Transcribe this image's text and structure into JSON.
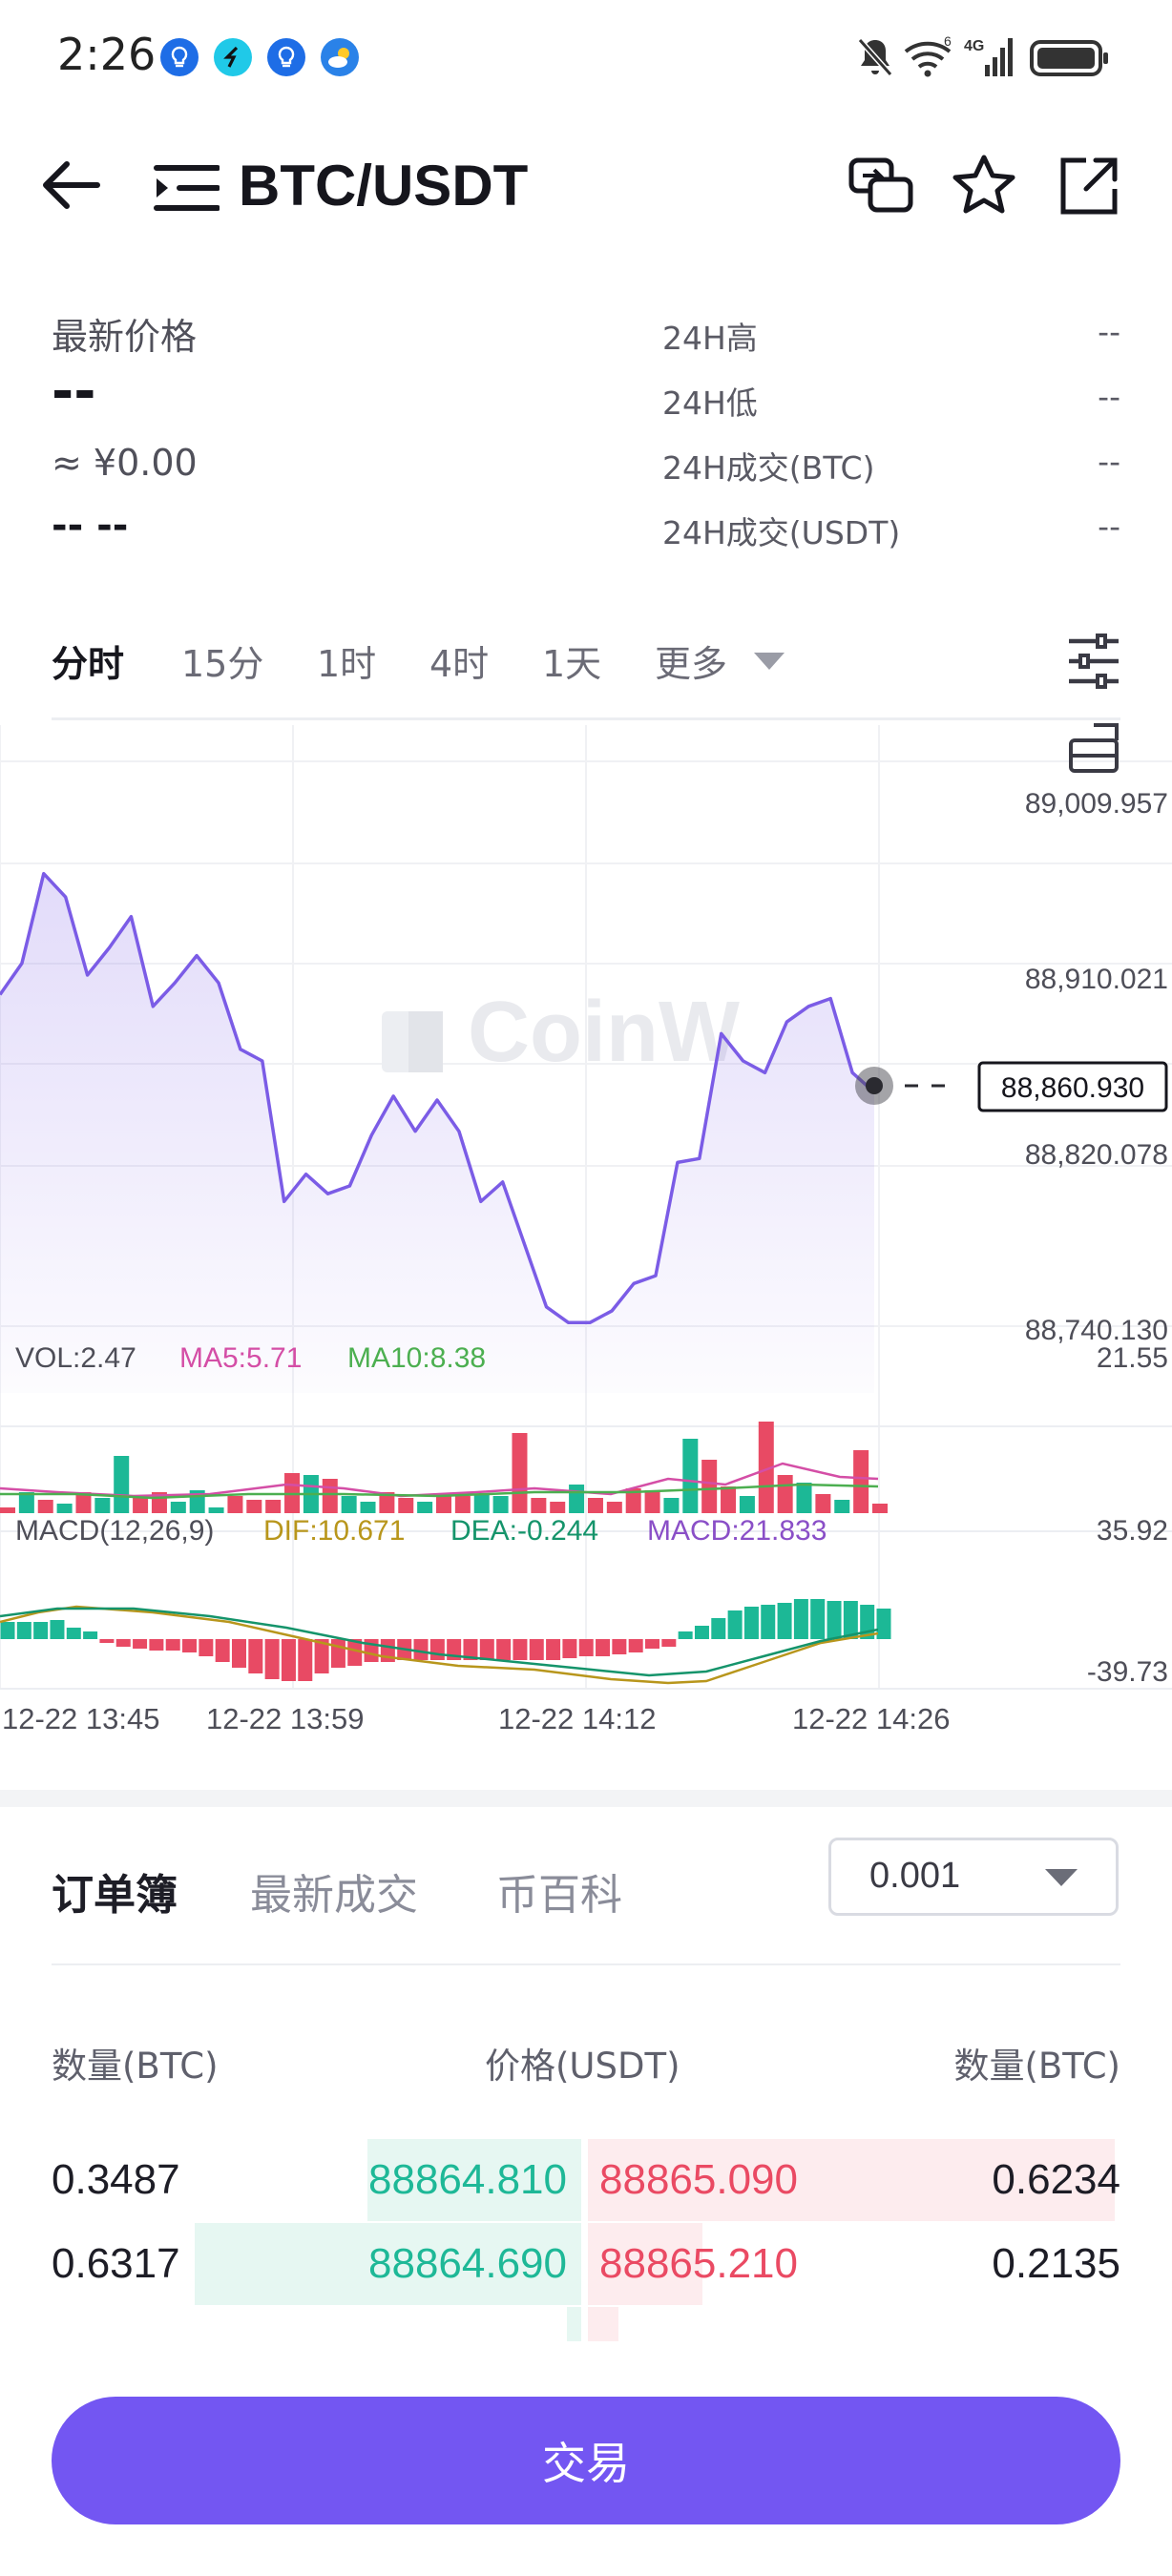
{
  "status_bar": {
    "time": "2:26",
    "notif_icons": [
      "bulb-icon",
      "app-icon",
      "bulb-icon",
      "weather-icon"
    ],
    "right_icons": [
      "mute-icon",
      "wifi-icon",
      "signal-icon",
      "battery-icon"
    ],
    "signal_label": "4G",
    "wifi_label": "6"
  },
  "header": {
    "title": "BTC/USDT",
    "icons": [
      "back-arrow-icon",
      "menu-list-icon",
      "swap-icon",
      "star-icon",
      "share-icon"
    ]
  },
  "stats": {
    "latest_price_label": "最新价格",
    "latest_price_value": "--",
    "cny_value": "≈ ¥0.00",
    "change_value": "-- --",
    "rows": [
      {
        "label": "24H高",
        "value": "--"
      },
      {
        "label": "24H低",
        "value": "--"
      },
      {
        "label": "24H成交(BTC)",
        "value": "--"
      },
      {
        "label": "24H成交(USDT)",
        "value": "--"
      }
    ]
  },
  "timeframes": [
    "分时",
    "15分",
    "1时",
    "4时",
    "1天",
    "更多"
  ],
  "active_timeframe": "分时",
  "chart": {
    "watermark": "CoinW",
    "price_ticks": [
      "89,009.957",
      "88,910.021",
      "88,820.078",
      "88,740.130"
    ],
    "current_price": "88,860.930",
    "volume_label": "VOL:2.47",
    "ma5_label": "MA5:5.71",
    "ma10_label": "MA10:8.38",
    "volume_max": "21.55",
    "macd_label": "MACD(12,26,9)",
    "dif_label": "DIF:10.671",
    "dea_label": "DEA:-0.244",
    "macd_value_label": "MACD:21.833",
    "macd_max": "35.92",
    "macd_min": "-39.73",
    "time_labels": [
      "12-22 13:45",
      "12-22 13:59",
      "12-22 14:12",
      "12-22 14:26"
    ],
    "colors": {
      "line": "#7b5ce6",
      "up": "#e84a64",
      "down": "#1cb896",
      "ma5": "#d44ea6",
      "ma10": "#4caf50",
      "dif": "#b8961c",
      "dea": "#15946b",
      "macd": "#8a4fc7"
    }
  },
  "chart_data": {
    "type": "line",
    "title": "",
    "series": [
      {
        "values": [
          88910,
          88926,
          88972,
          88960,
          88920,
          88934,
          88950,
          88904,
          88916,
          88930,
          88916,
          88882,
          88876,
          88804,
          88818,
          88808,
          88812,
          88838,
          88858,
          88840,
          88856,
          88840,
          88804,
          88814,
          88782,
          88750,
          88742,
          88742,
          88748,
          88762,
          88766,
          88824,
          88826,
          88890,
          88876,
          88870,
          88896,
          88904,
          88908,
          88870,
          88860
        ]
      }
    ],
    "ylim": [
      88740.13,
      89009.957
    ]
  },
  "orderbook": {
    "tabs": [
      "订单簿",
      "最新成交",
      "币百科"
    ],
    "active_tab": "订单簿",
    "precision": "0.001",
    "headers": [
      "数量(BTC)",
      "价格(USDT)",
      "数量(BTC)"
    ],
    "rows": [
      {
        "bid_qty": "0.3487",
        "bid_price": "88864.810",
        "ask_price": "88865.090",
        "ask_qty": "0.6234",
        "bid_depth": 0.23,
        "ask_depth": 0.55
      },
      {
        "bid_qty": "0.6317",
        "bid_price": "88864.690",
        "ask_price": "88865.210",
        "ask_qty": "0.2135",
        "bid_depth": 0.42,
        "ask_depth": 0.12
      }
    ]
  },
  "trade_button": "交易"
}
